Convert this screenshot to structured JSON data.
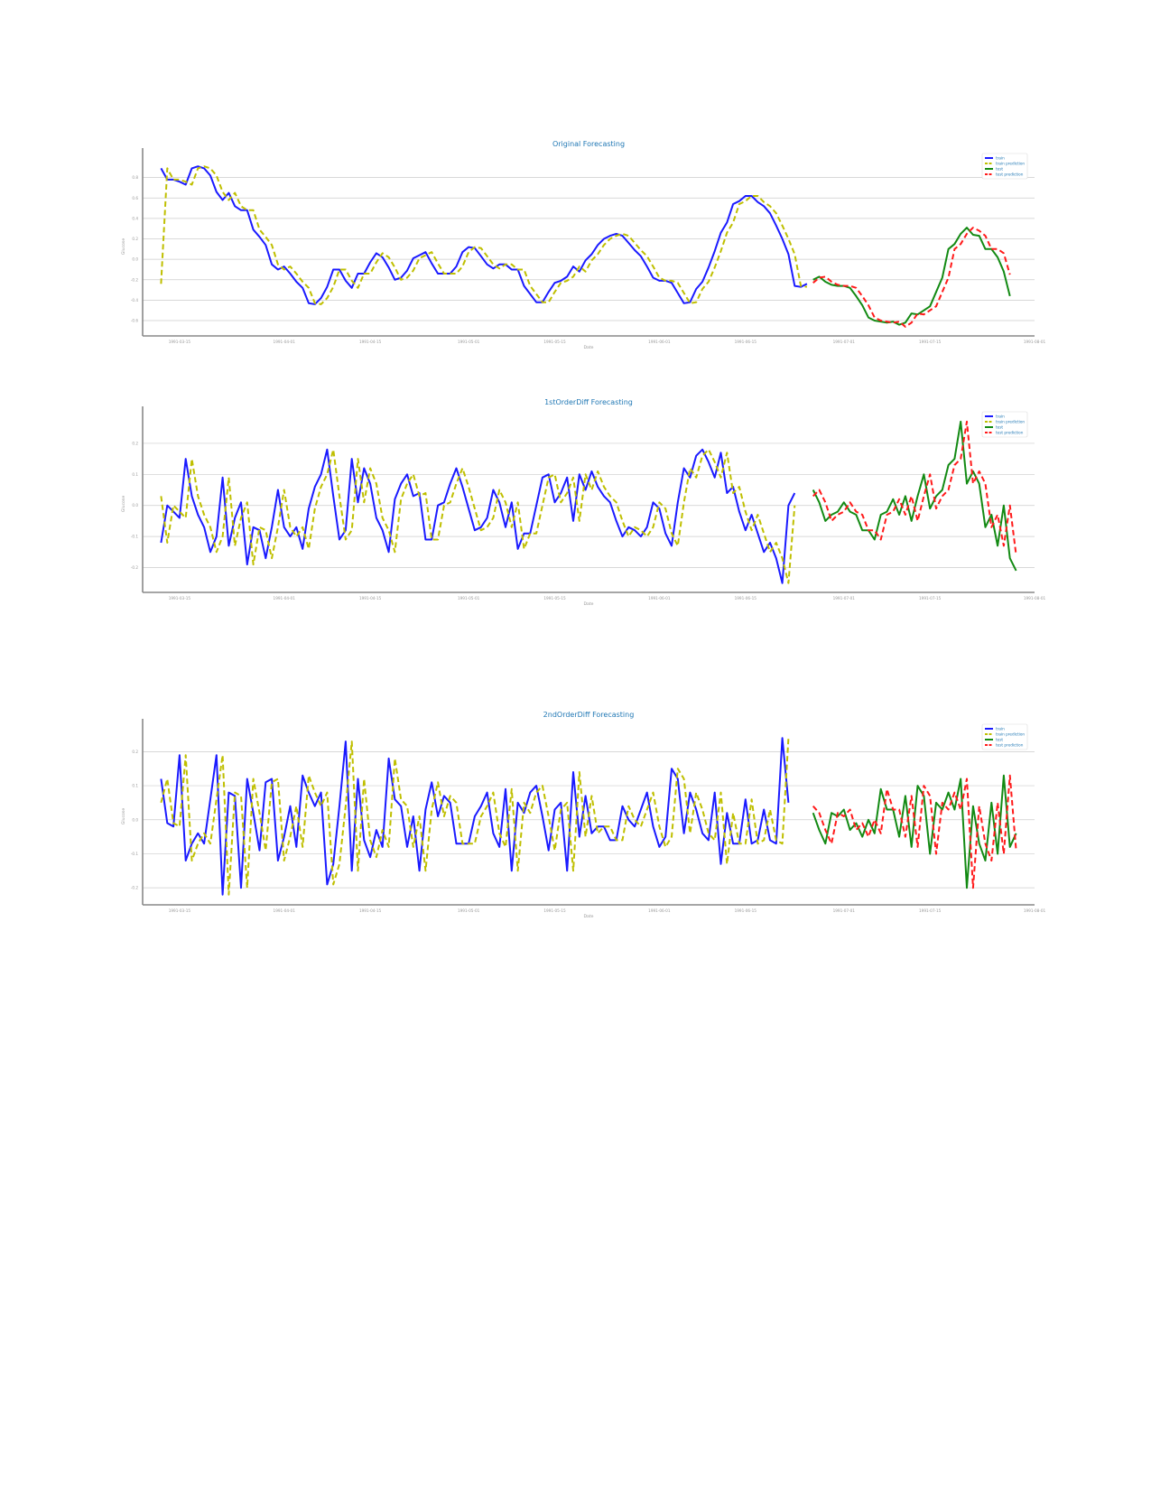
{
  "colors": {
    "train": "#1a1aff",
    "train_prediction": "#bfbf00",
    "test": "#138a13",
    "test_prediction": "#ff1a1a",
    "title": "#1f77b4",
    "grid": "#cccccc"
  },
  "chart_data": [
    {
      "type": "line",
      "title": "Original Forecasting",
      "xlabel": "Date",
      "ylabel": "Glucose",
      "x_ticks": [
        "1991-03-15",
        "1991-04-01",
        "1991-04-15",
        "1991-05-01",
        "1991-05-15",
        "1991-06-01",
        "1991-06-15",
        "1991-07-01",
        "1991-07-15",
        "1991-08-01"
      ],
      "yticks": [
        -0.6,
        -0.4,
        -0.2,
        0.0,
        0.2,
        0.4,
        0.6,
        0.8
      ],
      "ylim": [
        -0.75,
        1.0
      ],
      "xlim": [
        "1991-03-09",
        "1991-08-01"
      ],
      "legend": "top-right",
      "grid": true,
      "series": [
        {
          "name": "train",
          "start": "1991-03-12",
          "values": [
            0.89,
            0.78,
            0.78,
            0.76,
            0.73,
            0.89,
            0.91,
            0.89,
            0.82,
            0.66,
            0.58,
            0.65,
            0.52,
            0.48,
            0.48,
            0.29,
            0.22,
            0.14,
            -0.05,
            -0.1,
            -0.07,
            -0.14,
            -0.22,
            -0.28,
            -0.43,
            -0.44,
            -0.38,
            -0.27,
            -0.1,
            -0.1,
            -0.21,
            -0.28,
            -0.14,
            -0.14,
            -0.03,
            0.06,
            0.02,
            -0.08,
            -0.2,
            -0.18,
            -0.11,
            0.01,
            0.04,
            0.07,
            -0.04,
            -0.14,
            -0.14,
            -0.14,
            -0.07,
            0.07,
            0.12,
            0.11,
            0.03,
            -0.05,
            -0.09,
            -0.05,
            -0.05,
            -0.1,
            -0.1,
            -0.26,
            -0.34,
            -0.42,
            -0.42,
            -0.32,
            -0.23,
            -0.21,
            -0.17,
            -0.07,
            -0.12,
            -0.01,
            0.05,
            0.14,
            0.2,
            0.23,
            0.25,
            0.23,
            0.16,
            0.09,
            0.03,
            -0.07,
            -0.18,
            -0.21,
            -0.21,
            -0.23,
            -0.33,
            -0.43,
            -0.42,
            -0.29,
            -0.22,
            -0.08,
            0.08,
            0.26,
            0.36,
            0.54,
            0.57,
            0.62,
            0.62,
            0.56,
            0.52,
            0.45,
            0.33,
            0.2,
            0.05,
            -0.26,
            -0.27,
            -0.24
          ]
        },
        {
          "name": "train prediction",
          "start": "1991-03-12",
          "values": [
            -0.24,
            0.89,
            0.78,
            0.78,
            0.76,
            0.73,
            0.89,
            0.91,
            0.89,
            0.82,
            0.66,
            0.58,
            0.65,
            0.52,
            0.48,
            0.48,
            0.29,
            0.22,
            0.14,
            -0.05,
            -0.1,
            -0.07,
            -0.14,
            -0.22,
            -0.28,
            -0.43,
            -0.44,
            -0.38,
            -0.27,
            -0.1,
            -0.1,
            -0.21,
            -0.28,
            -0.14,
            -0.14,
            -0.03,
            0.06,
            0.02,
            -0.08,
            -0.2,
            -0.18,
            -0.11,
            0.01,
            0.04,
            0.07,
            -0.04,
            -0.14,
            -0.14,
            -0.14,
            -0.07,
            0.07,
            0.12,
            0.11,
            0.03,
            -0.05,
            -0.09,
            -0.05,
            -0.05,
            -0.1,
            -0.1,
            -0.26,
            -0.34,
            -0.42,
            -0.42,
            -0.32,
            -0.23,
            -0.21,
            -0.17,
            -0.07,
            -0.12,
            -0.01,
            0.05,
            0.14,
            0.2,
            0.23,
            0.25,
            0.23,
            0.16,
            0.09,
            0.03,
            -0.07,
            -0.18,
            -0.21,
            -0.21,
            -0.23,
            -0.33,
            -0.43,
            -0.42,
            -0.29,
            -0.22,
            -0.08,
            0.08,
            0.26,
            0.36,
            0.54,
            0.57,
            0.62,
            0.62,
            0.56,
            0.52,
            0.45,
            0.33,
            0.2,
            0.05,
            -0.26,
            -0.27
          ]
        },
        {
          "name": "test",
          "start": "1991-06-26",
          "values": [
            -0.2,
            -0.17,
            -0.22,
            -0.25,
            -0.26,
            -0.26,
            -0.28,
            -0.36,
            -0.45,
            -0.57,
            -0.6,
            -0.61,
            -0.62,
            -0.61,
            -0.64,
            -0.62,
            -0.53,
            -0.54,
            -0.5,
            -0.46,
            -0.32,
            -0.18,
            0.1,
            0.15,
            0.25,
            0.31,
            0.24,
            0.23,
            0.1,
            0.1,
            0.02,
            -0.12,
            -0.36
          ]
        },
        {
          "name": "test prediction",
          "start": "1991-06-26",
          "values": [
            -0.23,
            -0.18,
            -0.17,
            -0.22,
            -0.25,
            -0.26,
            -0.26,
            -0.28,
            -0.36,
            -0.45,
            -0.57,
            -0.6,
            -0.61,
            -0.62,
            -0.61,
            -0.66,
            -0.62,
            -0.53,
            -0.54,
            -0.5,
            -0.46,
            -0.32,
            -0.18,
            0.1,
            0.15,
            0.25,
            0.31,
            0.28,
            0.23,
            0.1,
            0.1,
            0.06,
            -0.15
          ]
        }
      ]
    },
    {
      "type": "line",
      "title": "1stOrderDiff Forecasting",
      "xlabel": "Date",
      "ylabel": "Glucose",
      "x_ticks": [
        "1991-03-15",
        "1991-04-01",
        "1991-04-15",
        "1991-05-01",
        "1991-05-15",
        "1991-06-01",
        "1991-06-15",
        "1991-07-01",
        "1991-07-15",
        "1991-08-01"
      ],
      "yticks": [
        -0.2,
        -0.1,
        0.0,
        0.1,
        0.2
      ],
      "ylim": [
        -0.28,
        0.29
      ],
      "xlim": [
        "1991-03-09",
        "1991-08-01"
      ],
      "legend": "top-right",
      "grid": true,
      "series": [
        {
          "name": "train",
          "start": "1991-03-12",
          "values": [
            -0.12,
            0.0,
            -0.02,
            -0.04,
            0.15,
            0.03,
            -0.03,
            -0.07,
            -0.15,
            -0.1,
            0.09,
            -0.13,
            -0.04,
            0.01,
            -0.19,
            -0.07,
            -0.08,
            -0.17,
            -0.07,
            0.05,
            -0.07,
            -0.1,
            -0.07,
            -0.14,
            -0.01,
            0.06,
            0.1,
            0.18,
            0.03,
            -0.11,
            -0.08,
            0.15,
            0.01,
            0.12,
            0.07,
            -0.04,
            -0.08,
            -0.15,
            0.02,
            0.07,
            0.1,
            0.03,
            0.04,
            -0.11,
            -0.11,
            0.0,
            0.01,
            0.07,
            0.12,
            0.06,
            -0.01,
            -0.08,
            -0.07,
            -0.04,
            0.05,
            0.01,
            -0.07,
            0.01,
            -0.14,
            -0.09,
            -0.09,
            0.0,
            0.09,
            0.1,
            0.01,
            0.04,
            0.09,
            -0.05,
            0.1,
            0.05,
            0.11,
            0.06,
            0.03,
            0.01,
            -0.05,
            -0.1,
            -0.07,
            -0.08,
            -0.1,
            -0.07,
            0.01,
            -0.01,
            -0.09,
            -0.13,
            0.01,
            0.12,
            0.09,
            0.16,
            0.18,
            0.14,
            0.09,
            0.17,
            0.04,
            0.06,
            -0.02,
            -0.08,
            -0.03,
            -0.09,
            -0.15,
            -0.12,
            -0.17,
            -0.25,
            0.0,
            0.04
          ]
        },
        {
          "name": "train prediction",
          "start": "1991-03-12",
          "values": [
            0.03,
            -0.12,
            0.0,
            -0.02,
            -0.04,
            0.15,
            0.03,
            -0.03,
            -0.07,
            -0.15,
            -0.1,
            0.09,
            -0.13,
            -0.04,
            0.01,
            -0.19,
            -0.07,
            -0.08,
            -0.17,
            -0.07,
            0.05,
            -0.07,
            -0.1,
            -0.07,
            -0.14,
            -0.01,
            0.06,
            0.1,
            0.18,
            0.03,
            -0.11,
            -0.08,
            0.15,
            0.01,
            0.12,
            0.07,
            -0.04,
            -0.08,
            -0.15,
            0.02,
            0.07,
            0.1,
            0.03,
            0.04,
            -0.11,
            -0.11,
            0.0,
            0.01,
            0.07,
            0.12,
            0.06,
            -0.01,
            -0.08,
            -0.07,
            -0.04,
            0.05,
            0.01,
            -0.07,
            0.01,
            -0.14,
            -0.09,
            -0.09,
            0.0,
            0.09,
            0.1,
            0.01,
            0.04,
            0.09,
            -0.05,
            0.1,
            0.05,
            0.11,
            0.06,
            0.03,
            0.01,
            -0.05,
            -0.1,
            -0.07,
            -0.08,
            -0.1,
            -0.07,
            0.01,
            -0.01,
            -0.09,
            -0.13,
            0.01,
            0.12,
            0.09,
            0.16,
            0.18,
            0.14,
            0.09,
            0.17,
            0.04,
            0.06,
            -0.02,
            -0.08,
            -0.03,
            -0.09,
            -0.15,
            -0.12,
            -0.17,
            -0.25,
            0.0
          ]
        },
        {
          "name": "test",
          "start": "1991-06-26",
          "values": [
            0.05,
            0.01,
            -0.05,
            -0.03,
            -0.02,
            0.01,
            -0.02,
            -0.03,
            -0.08,
            -0.08,
            -0.11,
            -0.03,
            -0.02,
            0.02,
            -0.03,
            0.03,
            -0.05,
            0.03,
            0.1,
            -0.01,
            0.03,
            0.05,
            0.13,
            0.15,
            0.27,
            0.07,
            0.11,
            0.07,
            -0.07,
            -0.03,
            -0.13,
            0.0,
            -0.17,
            -0.21
          ]
        },
        {
          "name": "test prediction",
          "start": "1991-06-26",
          "values": [
            0.03,
            0.05,
            0.01,
            -0.05,
            -0.03,
            -0.02,
            0.01,
            -0.02,
            -0.03,
            -0.08,
            -0.08,
            -0.11,
            -0.03,
            -0.02,
            0.02,
            -0.03,
            0.03,
            -0.05,
            0.03,
            0.1,
            -0.01,
            0.03,
            0.05,
            0.13,
            0.15,
            0.27,
            0.07,
            0.11,
            0.07,
            -0.07,
            -0.03,
            -0.13,
            0.0,
            -0.16
          ]
        }
      ]
    },
    {
      "type": "line",
      "title": "2ndOrderDiff Forecasting",
      "xlabel": "Date",
      "ylabel": "Glucose",
      "x_ticks": [
        "1991-03-15",
        "1991-04-01",
        "1991-04-15",
        "1991-05-01",
        "1991-05-15",
        "1991-06-01",
        "1991-06-15",
        "1991-07-01",
        "1991-07-15",
        "1991-08-01"
      ],
      "yticks": [
        -0.2,
        -0.1,
        0.0,
        0.1,
        0.2
      ],
      "ylim": [
        -0.25,
        0.27
      ],
      "xlim": [
        "1991-03-09",
        "1991-08-01"
      ],
      "legend": "top-right",
      "grid": true,
      "series": [
        {
          "name": "train",
          "start": "1991-03-12",
          "values": [
            0.12,
            -0.01,
            -0.02,
            0.19,
            -0.12,
            -0.07,
            -0.04,
            -0.07,
            0.06,
            0.19,
            -0.22,
            0.08,
            0.07,
            -0.2,
            0.12,
            0.02,
            -0.09,
            0.11,
            0.12,
            -0.12,
            -0.05,
            0.04,
            -0.08,
            0.13,
            0.08,
            0.04,
            0.08,
            -0.19,
            -0.13,
            0.04,
            0.23,
            -0.15,
            0.12,
            -0.06,
            -0.11,
            -0.03,
            -0.08,
            0.18,
            0.06,
            0.04,
            -0.08,
            0.01,
            -0.15,
            0.03,
            0.11,
            0.01,
            0.07,
            0.05,
            -0.07,
            -0.07,
            -0.07,
            0.01,
            0.04,
            0.08,
            -0.04,
            -0.08,
            0.09,
            -0.15,
            0.05,
            0.02,
            0.08,
            0.1,
            0.01,
            -0.09,
            0.03,
            0.05,
            -0.15,
            0.14,
            -0.05,
            0.07,
            -0.04,
            -0.02,
            -0.02,
            -0.06,
            -0.06,
            0.04,
            0.0,
            -0.02,
            0.03,
            0.08,
            -0.02,
            -0.08,
            -0.05,
            0.15,
            0.12,
            -0.04,
            0.08,
            0.03,
            -0.04,
            -0.06,
            0.08,
            -0.13,
            0.02,
            -0.07,
            -0.07,
            0.06,
            -0.07,
            -0.06,
            0.03,
            -0.06,
            -0.07,
            0.24,
            0.05
          ]
        },
        {
          "name": "train prediction",
          "start": "1991-03-12",
          "values": [
            0.05,
            0.12,
            -0.01,
            -0.02,
            0.19,
            -0.12,
            -0.07,
            -0.04,
            -0.07,
            0.06,
            0.19,
            -0.22,
            0.08,
            0.07,
            -0.2,
            0.12,
            0.02,
            -0.09,
            0.11,
            0.12,
            -0.12,
            -0.05,
            0.04,
            -0.08,
            0.13,
            0.08,
            0.04,
            0.08,
            -0.19,
            -0.13,
            0.04,
            0.23,
            -0.15,
            0.12,
            -0.06,
            -0.11,
            -0.03,
            -0.08,
            0.18,
            0.06,
            0.04,
            -0.08,
            0.01,
            -0.15,
            0.03,
            0.11,
            0.01,
            0.07,
            0.05,
            -0.07,
            -0.07,
            -0.07,
            0.01,
            0.04,
            0.08,
            -0.04,
            -0.08,
            0.09,
            -0.15,
            0.05,
            0.02,
            0.08,
            0.1,
            0.01,
            -0.09,
            0.03,
            0.05,
            -0.15,
            0.14,
            -0.05,
            0.07,
            -0.04,
            -0.02,
            -0.02,
            -0.06,
            -0.06,
            0.04,
            0.0,
            -0.02,
            0.03,
            0.08,
            -0.02,
            -0.08,
            -0.05,
            0.15,
            0.12,
            -0.04,
            0.08,
            0.03,
            -0.04,
            -0.06,
            0.08,
            -0.13,
            0.02,
            -0.07,
            -0.07,
            0.06,
            -0.07,
            -0.06,
            0.03,
            -0.06,
            -0.07,
            0.24
          ]
        },
        {
          "name": "test",
          "start": "1991-06-26",
          "values": [
            0.02,
            -0.03,
            -0.07,
            0.02,
            0.01,
            0.03,
            -0.03,
            -0.01,
            -0.05,
            0.0,
            -0.04,
            0.09,
            0.03,
            0.03,
            -0.05,
            0.07,
            -0.08,
            0.1,
            0.07,
            -0.1,
            0.05,
            0.03,
            0.08,
            0.03,
            0.12,
            -0.2,
            0.04,
            -0.07,
            -0.12,
            0.05,
            -0.1,
            0.13,
            -0.08,
            -0.04
          ]
        },
        {
          "name": "test prediction",
          "start": "1991-06-26",
          "values": [
            0.04,
            0.02,
            -0.03,
            -0.07,
            0.02,
            0.01,
            0.03,
            -0.03,
            -0.01,
            -0.05,
            0.0,
            -0.04,
            0.09,
            0.03,
            0.03,
            -0.05,
            0.07,
            -0.08,
            0.1,
            0.07,
            -0.1,
            0.05,
            0.03,
            0.08,
            0.03,
            0.12,
            -0.2,
            0.04,
            -0.07,
            -0.12,
            0.05,
            -0.1,
            0.13,
            -0.09
          ]
        }
      ]
    }
  ]
}
